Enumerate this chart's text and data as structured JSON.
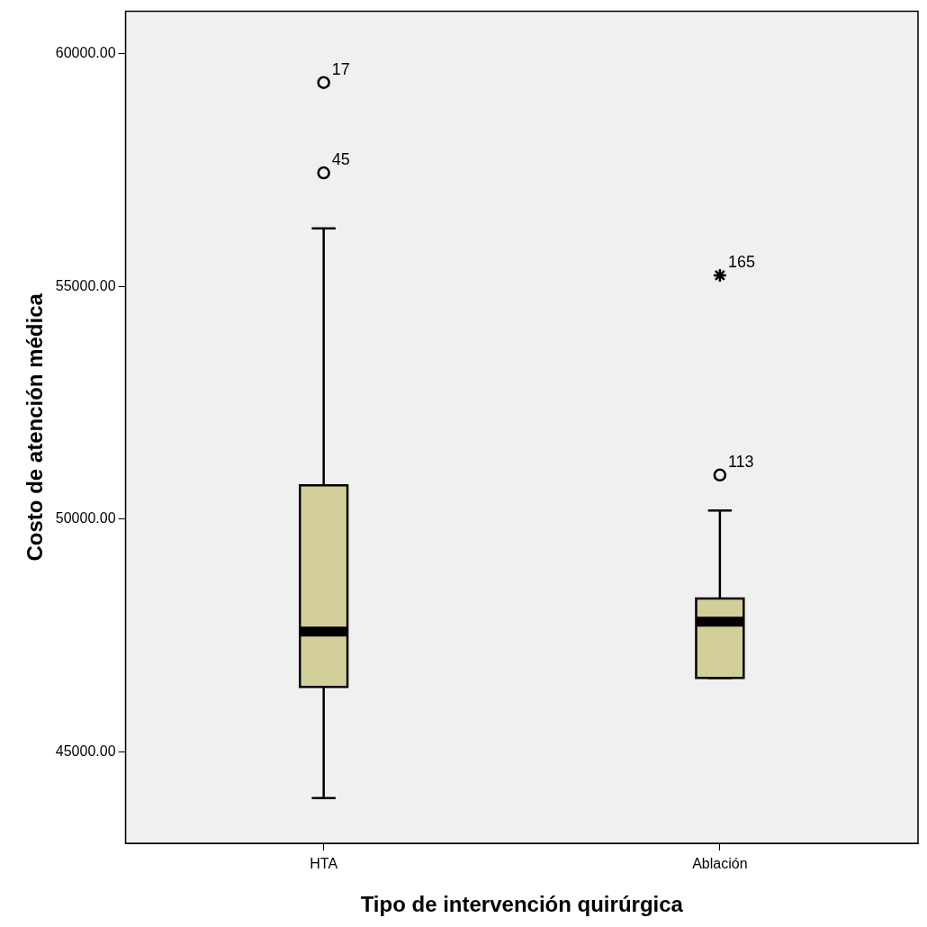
{
  "chart_data": {
    "type": "box",
    "xlabel": "Tipo de intervención quirúrgica",
    "ylabel": "Costo de atención médica",
    "categories": [
      "HTA",
      "Ablación"
    ],
    "series": [
      {
        "color": "#d3cf9b",
        "boxes": [
          {
            "low": 44010,
            "q1": 46400,
            "median": 47590,
            "q3": 50730,
            "high": 56250
          },
          {
            "low": 46590,
            "q1": 46590,
            "median": 47800,
            "q3": 48300,
            "high": 50190
          }
        ]
      },
      {
        "type": "scatter",
        "marker": "circle",
        "color": "#000000",
        "x": [
          "HTA",
          "HTA",
          "Ablación"
        ],
        "values": [
          59380,
          57440,
          50950
        ]
      },
      {
        "type": "scatter",
        "marker": "cross",
        "color": "#000000",
        "x": [
          "Ablación"
        ],
        "values": [
          55240
        ]
      }
    ],
    "ylim": [
      43040,
      60910
    ],
    "yticks": [
      {
        "value": 45000,
        "label": "45000.00"
      },
      {
        "value": 50000,
        "label": "50000.00"
      },
      {
        "value": 55000,
        "label": "55000.00"
      },
      {
        "value": 60000,
        "label": "60000.00"
      }
    ],
    "annotations": [
      {
        "text": "17",
        "x": "HTA",
        "y": 59380
      },
      {
        "text": "45",
        "x": "HTA",
        "y": 57440
      },
      {
        "text": "165",
        "x": "Ablación",
        "y": 55240
      },
      {
        "text": "113",
        "x": "Ablación",
        "y": 50950
      }
    ],
    "grid": false,
    "legend": false
  }
}
